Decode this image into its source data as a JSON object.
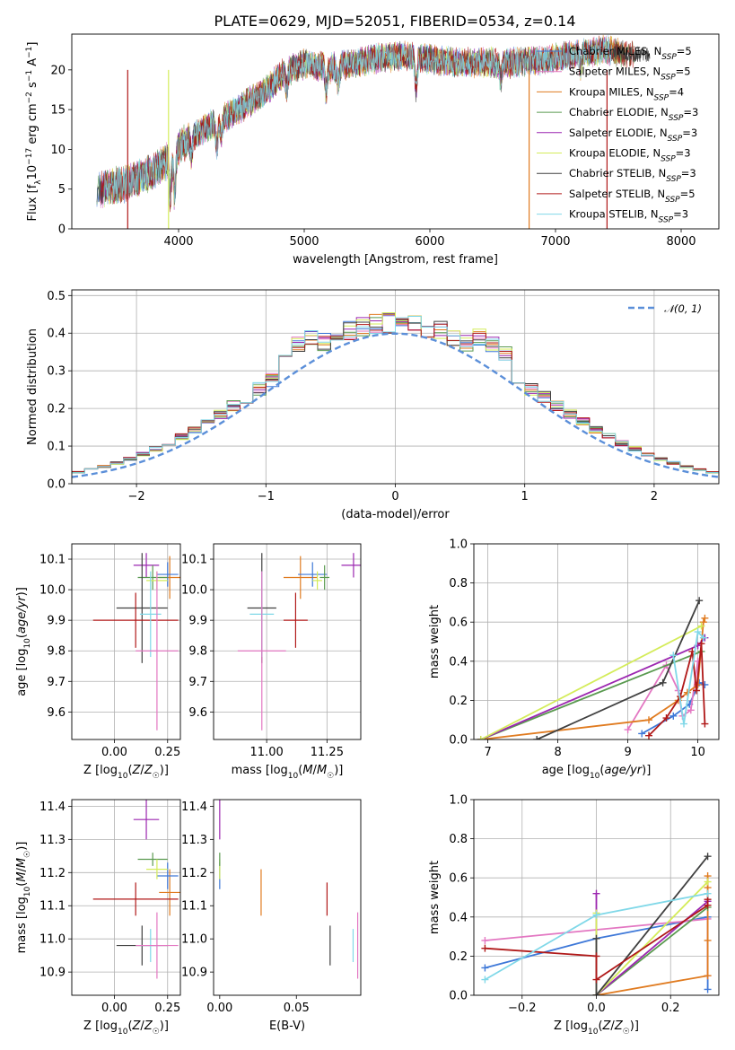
{
  "title": "PLATE=0629, MJD=52051, FIBERID=0534, z=0.14",
  "colors": {
    "blue": "#3e78d8",
    "pink": "#e377c2",
    "orange": "#e07b20",
    "green": "#5a9a50",
    "purple": "#9c27b0",
    "yellow": "#d4ec5a",
    "dark": "#404040",
    "red": "#b01818",
    "cyan": "#80d8e8",
    "dashed": "#5b8fd9",
    "grid": "#b0b0b0"
  },
  "chart_data": [
    {
      "id": "spectrum",
      "type": "line",
      "xlabel": "wavelength [Angstrom, rest frame]",
      "ylabel": "Flux [f_λ 10^-17 erg cm^-2 s^-1 A^-1]",
      "xlim": [
        3150,
        8300
      ],
      "ylim": [
        0,
        24.5
      ],
      "xticks": [
        "4000",
        "5000",
        "6000",
        "7000",
        "8000"
      ],
      "yticks": [
        "0",
        "5",
        "10",
        "15",
        "20"
      ],
      "grid": false,
      "legend_position": "top-right",
      "series": [
        {
          "name": "Chabrier MILES, N_SSP=5",
          "color": "blue"
        },
        {
          "name": "Salpeter MILES, N_SSP=5",
          "color": "pink"
        },
        {
          "name": "Kroupa MILES, N_SSP=4",
          "color": "orange"
        },
        {
          "name": "Chabrier ELODIE, N_SSP=3",
          "color": "green"
        },
        {
          "name": "Salpeter ELODIE, N_SSP=3",
          "color": "purple"
        },
        {
          "name": "Kroupa ELODIE, N_SSP=3",
          "color": "yellow"
        },
        {
          "name": "Chabrier STELIB, N_SSP=3",
          "color": "dark"
        },
        {
          "name": "Salpeter STELIB, N_SSP=5",
          "color": "red"
        },
        {
          "name": "Kroupa STELIB, N_SSP=3",
          "color": "cyan"
        }
      ],
      "continuum": {
        "x": [
          3350,
          3450,
          3600,
          3800,
          3900,
          4000,
          4100,
          4300,
          4500,
          4700,
          4850,
          5000,
          5200,
          5400,
          5600,
          5800,
          6000,
          6200,
          6400,
          6600,
          6800,
          7000,
          7200,
          7400,
          7600
        ],
        "y": [
          5,
          5.2,
          5.8,
          7.2,
          8.5,
          10,
          11.5,
          13.5,
          15.2,
          17.5,
          19.8,
          20.8,
          20.2,
          20.8,
          21.5,
          21.8,
          21.3,
          20.9,
          21,
          20.8,
          21.1,
          21.4,
          22,
          22.5,
          22
        ]
      }
    },
    {
      "id": "residuals",
      "type": "step",
      "xlabel": "(data-model)/error",
      "ylabel": "Normed distribution",
      "xlim": [
        -2.5,
        2.5
      ],
      "ylim": [
        0,
        0.515
      ],
      "xticks": [
        -2,
        -1,
        0,
        1,
        2
      ],
      "yticks": [
        0.0,
        0.1,
        0.2,
        0.3,
        0.4,
        0.5
      ],
      "grid": true,
      "legend_position": "top-right",
      "legend": [
        "𝒩(0, 1)"
      ],
      "bin_width": 0.1
    },
    {
      "id": "age_vs_Z",
      "type": "errorbar",
      "xlabel": "Z [log10(Z/Z☉)]",
      "ylabel": "age [log10(age/yr)]",
      "xlim": [
        -0.2,
        0.31
      ],
      "ylim": [
        9.51,
        10.15
      ],
      "xticks": [
        0.0,
        0.25
      ],
      "yticks": [
        9.6,
        9.7,
        9.8,
        9.9,
        10.0,
        10.1
      ],
      "grid": true,
      "points": [
        {
          "c": "purple",
          "x": 0.15,
          "xe": 0.06,
          "y": 10.08,
          "ye": 0.04
        },
        {
          "c": "orange",
          "x": 0.26,
          "xe": 0.05,
          "y": 10.04,
          "ye": 0.07
        },
        {
          "c": "blue",
          "x": 0.25,
          "xe": 0.05,
          "y": 10.05,
          "ye": 0.04
        },
        {
          "c": "green",
          "x": 0.18,
          "xe": 0.07,
          "y": 10.04,
          "ye": 0.04
        },
        {
          "c": "yellow",
          "x": 0.2,
          "xe": 0.05,
          "y": 10.03,
          "ye": 0.03
        },
        {
          "c": "dark",
          "x": 0.13,
          "xe": 0.12,
          "y": 9.94,
          "ye": 0.18
        },
        {
          "c": "red",
          "x": 0.1,
          "xe": 0.2,
          "y": 9.9,
          "ye": 0.09
        },
        {
          "c": "cyan",
          "x": 0.17,
          "xe": 0.05,
          "y": 9.92,
          "ye": 0.14
        },
        {
          "c": "pink",
          "x": 0.2,
          "xe": 0.1,
          "y": 9.8,
          "ye": 0.26
        }
      ]
    },
    {
      "id": "age_vs_mass",
      "type": "errorbar",
      "xlabel": "mass [log10(M/M☉)]",
      "ylabel": "",
      "xlim": [
        10.78,
        11.39
      ],
      "ylim": [
        9.51,
        10.15
      ],
      "xticks": [
        11.0,
        11.25
      ],
      "yticks": [
        9.6,
        9.7,
        9.8,
        9.9,
        10.0,
        10.1
      ],
      "grid": true,
      "points": [
        {
          "c": "purple",
          "x": 11.36,
          "xe": 0.05,
          "y": 10.08,
          "ye": 0.04
        },
        {
          "c": "orange",
          "x": 11.14,
          "xe": 0.07,
          "y": 10.04,
          "ye": 0.07
        },
        {
          "c": "blue",
          "x": 11.19,
          "xe": 0.06,
          "y": 10.05,
          "ye": 0.04
        },
        {
          "c": "green",
          "x": 11.24,
          "xe": 0.02,
          "y": 10.04,
          "ye": 0.04
        },
        {
          "c": "yellow",
          "x": 11.21,
          "xe": 0.02,
          "y": 10.03,
          "ye": 0.03
        },
        {
          "c": "dark",
          "x": 10.98,
          "xe": 0.06,
          "y": 9.94,
          "ye": 0.18
        },
        {
          "c": "red",
          "x": 11.12,
          "xe": 0.05,
          "y": 9.9,
          "ye": 0.09
        },
        {
          "c": "cyan",
          "x": 10.98,
          "xe": 0.05,
          "y": 9.92,
          "ye": 0.14
        },
        {
          "c": "pink",
          "x": 10.98,
          "xe": 0.1,
          "y": 9.8,
          "ye": 0.26
        }
      ]
    },
    {
      "id": "weight_vs_age",
      "type": "line",
      "xlabel": "age log10(age/yr)",
      "ylabel": "mass weight",
      "xlim": [
        6.8,
        10.3
      ],
      "ylim": [
        0,
        1.0
      ],
      "xticks": [
        7,
        8,
        9,
        10
      ],
      "yticks": [
        0.0,
        0.2,
        0.4,
        0.6,
        0.8,
        1.0
      ],
      "grid": true,
      "series": [
        {
          "c": "blue",
          "x": [
            9.2,
            9.65,
            9.88,
            10.02,
            10.1
          ],
          "y": [
            0.03,
            0.12,
            0.18,
            0.29,
            0.28
          ]
        },
        {
          "c": "pink",
          "x": [
            9.0,
            9.55,
            9.72,
            9.78,
            9.9,
            10.0
          ],
          "y": [
            0.05,
            0.38,
            0.25,
            0.12,
            0.15,
            0.4
          ]
        },
        {
          "c": "orange",
          "x": [
            6.9,
            9.3,
            9.72,
            9.85,
            10.0,
            10.08,
            10.1
          ],
          "y": [
            0.0,
            0.1,
            0.2,
            0.24,
            0.28,
            0.6,
            0.62
          ]
        },
        {
          "c": "green",
          "x": [
            6.9,
            10.05
          ],
          "y": [
            0.0,
            0.45
          ]
        },
        {
          "c": "purple",
          "x": [
            6.9,
            10.0,
            10.1
          ],
          "y": [
            0.0,
            0.48,
            0.52
          ]
        },
        {
          "c": "yellow",
          "x": [
            6.9,
            10.05
          ],
          "y": [
            0.0,
            0.58
          ]
        },
        {
          "c": "dark",
          "x": [
            7.7,
            9.5,
            10.02
          ],
          "y": [
            0.0,
            0.29,
            0.71
          ]
        },
        {
          "c": "red",
          "x": [
            9.3,
            9.55,
            9.75,
            9.92,
            9.98,
            10.05,
            10.1
          ],
          "y": [
            0.02,
            0.11,
            0.22,
            0.45,
            0.25,
            0.49,
            0.08
          ]
        },
        {
          "c": "cyan",
          "x": [
            9.65,
            9.8,
            10.0,
            10.08
          ],
          "y": [
            0.43,
            0.08,
            0.55,
            0.52
          ]
        }
      ]
    },
    {
      "id": "mass_vs_Z",
      "type": "errorbar",
      "xlabel": "Z [log10(Z/Z☉)]",
      "ylabel": "mass [log10(M/M☉)]",
      "xlim": [
        -0.2,
        0.31
      ],
      "ylim": [
        10.83,
        11.42
      ],
      "xticks": [
        0.0,
        0.25
      ],
      "yticks": [
        10.9,
        11.0,
        11.1,
        11.2,
        11.3,
        11.4
      ],
      "grid": true,
      "points": [
        {
          "c": "purple",
          "x": 0.15,
          "xe": 0.06,
          "y": 11.36,
          "ye": 0.06
        },
        {
          "c": "orange",
          "x": 0.26,
          "xe": 0.05,
          "y": 11.14,
          "ye": 0.07
        },
        {
          "c": "blue",
          "x": 0.25,
          "xe": 0.05,
          "y": 11.19,
          "ye": 0.04
        },
        {
          "c": "green",
          "x": 0.18,
          "xe": 0.07,
          "y": 11.24,
          "ye": 0.02
        },
        {
          "c": "yellow",
          "x": 0.2,
          "xe": 0.05,
          "y": 11.21,
          "ye": 0.03
        },
        {
          "c": "dark",
          "x": 0.13,
          "xe": 0.12,
          "y": 10.98,
          "ye": 0.06
        },
        {
          "c": "red",
          "x": 0.1,
          "xe": 0.2,
          "y": 11.12,
          "ye": 0.05
        },
        {
          "c": "cyan",
          "x": 0.17,
          "xe": 0.05,
          "y": 10.98,
          "ye": 0.05
        },
        {
          "c": "pink",
          "x": 0.2,
          "xe": 0.1,
          "y": 10.98,
          "ye": 0.1
        }
      ]
    },
    {
      "id": "mass_vs_EBV",
      "type": "errorbar",
      "xlabel": "E(B-V)",
      "ylabel": "",
      "xlim": [
        -0.004,
        0.092
      ],
      "ylim": [
        10.83,
        11.42
      ],
      "xticks": [
        0.0,
        0.05
      ],
      "yticks": [
        10.9,
        11.0,
        11.1,
        11.2,
        11.3,
        11.4
      ],
      "grid": false,
      "points": [
        {
          "c": "purple",
          "x": 0.0,
          "xe": 0,
          "y": 11.36,
          "ye": 0.06
        },
        {
          "c": "blue",
          "x": 0.0,
          "xe": 0,
          "y": 11.19,
          "ye": 0.04
        },
        {
          "c": "yellow",
          "x": 0.0,
          "xe": 0,
          "y": 11.21,
          "ye": 0.03
        },
        {
          "c": "green",
          "x": 0.0,
          "xe": 0,
          "y": 11.24,
          "ye": 0.02
        },
        {
          "c": "orange",
          "x": 0.027,
          "xe": 0,
          "y": 11.14,
          "ye": 0.07
        },
        {
          "c": "red",
          "x": 0.07,
          "xe": 0,
          "y": 11.12,
          "ye": 0.05
        },
        {
          "c": "dark",
          "x": 0.072,
          "xe": 0,
          "y": 10.98,
          "ye": 0.06
        },
        {
          "c": "cyan",
          "x": 0.087,
          "xe": 0,
          "y": 10.98,
          "ye": 0.05
        },
        {
          "c": "pink",
          "x": 0.09,
          "xe": 0,
          "y": 10.98,
          "ye": 0.1
        }
      ]
    },
    {
      "id": "weight_vs_Z",
      "type": "line",
      "xlabel": "Z [log10(Z/Z☉)]",
      "ylabel": "mass weight",
      "xlim": [
        -0.33,
        0.33
      ],
      "ylim": [
        0,
        1.0
      ],
      "xticks": [
        -0.2,
        0.0,
        0.2
      ],
      "yticks": [
        0.0,
        0.2,
        0.4,
        0.6,
        0.8,
        1.0
      ],
      "grid": true,
      "series": [
        {
          "c": "blue",
          "x": [
            -0.3,
            0.0,
            0.3,
            0.3
          ],
          "y": [
            0.14,
            0.29,
            0.4,
            0.03
          ]
        },
        {
          "c": "pink",
          "x": [
            -0.3,
            0.3,
            0.3
          ],
          "y": [
            0.28,
            0.39,
            0.1
          ]
        },
        {
          "c": "orange",
          "x": [
            0.0,
            0.3,
            0.3,
            0.3,
            0.3
          ],
          "y": [
            0.0,
            0.1,
            0.28,
            0.55,
            0.61
          ]
        },
        {
          "c": "green",
          "x": [
            0.0,
            0.3
          ],
          "y": [
            0.0,
            0.45
          ]
        },
        {
          "c": "purple",
          "x": [
            0.0,
            0.0,
            0.3
          ],
          "y": [
            0.52,
            0.0,
            0.48
          ]
        },
        {
          "c": "yellow",
          "x": [
            0.0,
            0.0,
            0.3
          ],
          "y": [
            0.42,
            0.0,
            0.58
          ]
        },
        {
          "c": "dark",
          "x": [
            0.0,
            0.0,
            0.3
          ],
          "y": [
            0.29,
            0.0,
            0.71
          ]
        },
        {
          "c": "red",
          "x": [
            -0.3,
            0.0,
            0.0,
            0.3,
            0.3
          ],
          "y": [
            0.24,
            0.2,
            0.08,
            0.46,
            0.49
          ]
        },
        {
          "c": "cyan",
          "x": [
            -0.3,
            0.0,
            0.3
          ],
          "y": [
            0.08,
            0.41,
            0.52
          ]
        }
      ]
    }
  ]
}
